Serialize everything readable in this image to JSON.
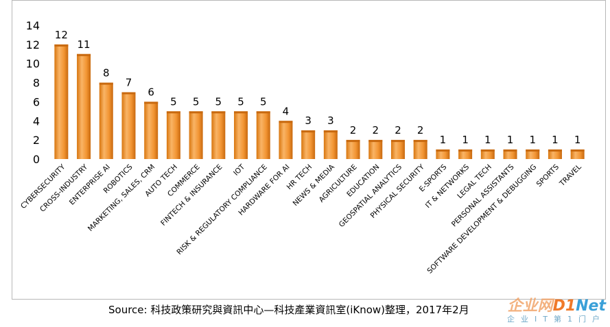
{
  "chart_data": {
    "type": "bar",
    "categories": [
      "CYBERSECURITY",
      "CROSS-INDUSTRY",
      "ENTERPRISE AI",
      "ROBOTICS",
      "MARKETING, SALES, CRM",
      "AUTO TECH",
      "COMMERCE",
      "FINTECH & INSURANCE",
      "IOT",
      "RISK & REGULATORY COMPLIANCE",
      "HARDWARE FOR AI",
      "HR TECH",
      "NEWS & MEDIA",
      "AGRICULTURE",
      "EDUCATION",
      "GEOSPATIAL ANALYTICS",
      "PHYSICAL SECURITY",
      "E-SPORTS",
      "IT & NETWORKS",
      "LEGAL TECH",
      "PERSONAL ASSISTANTS",
      "SOFTWARE DEVELOPMENT & DEBUGGING",
      "SPORTS",
      "TRAVEL"
    ],
    "values": [
      12,
      11,
      8,
      7,
      6,
      5,
      5,
      5,
      5,
      5,
      4,
      3,
      3,
      2,
      2,
      2,
      2,
      1,
      1,
      1,
      1,
      1,
      1,
      1
    ],
    "ylim": [
      0,
      14
    ],
    "yticks": [
      0,
      2,
      4,
      6,
      8,
      10,
      12,
      14
    ],
    "grid": false,
    "legend": "none",
    "bar_color": "#f0952e",
    "bar_color_light": "#f9c48a",
    "bar_color_dark": "#c8690f"
  },
  "source": "Source: 科技政策研究與資訊中心—科技產業資訊室(iKnow)整理，2017年2月",
  "watermark": {
    "brand_cn": "企业网",
    "brand_d1": "D1",
    "brand_net": "Net",
    "tagline": "企业IT第1门户"
  }
}
